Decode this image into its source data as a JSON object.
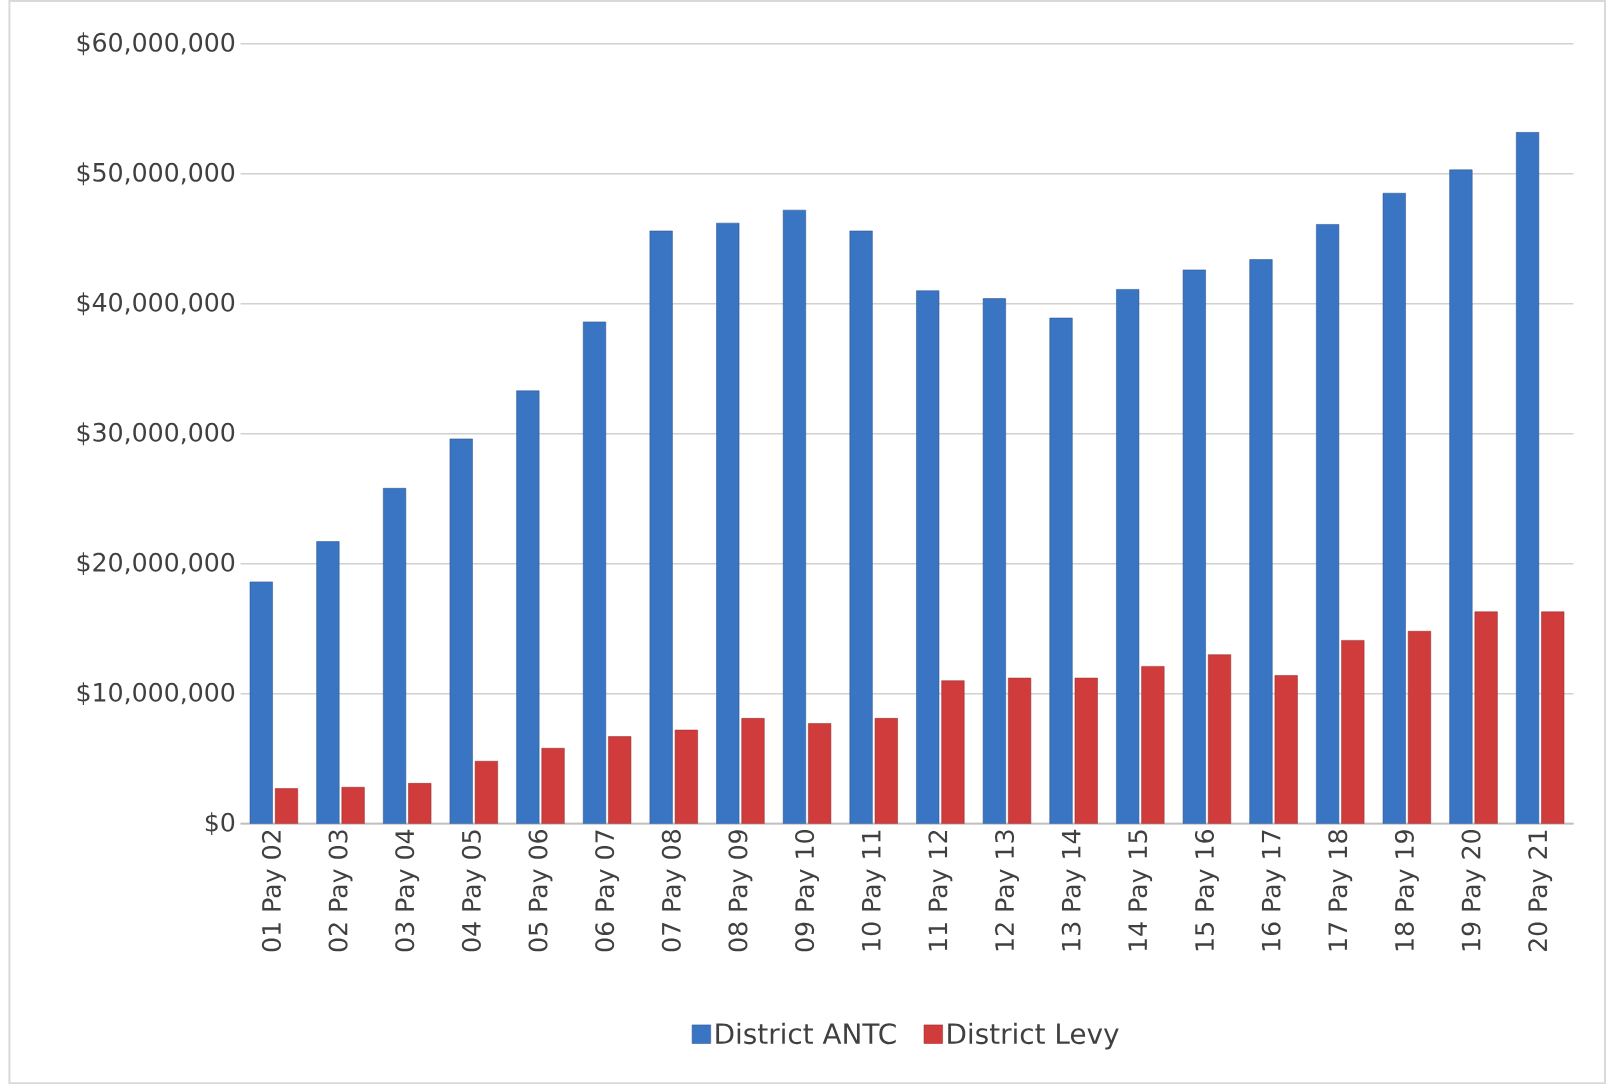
{
  "chart_data": {
    "type": "bar",
    "categories": [
      "01 Pay 02",
      "02 Pay 03",
      "03 Pay 04",
      "04 Pay 05",
      "05 Pay 06",
      "06 Pay 07",
      "07 Pay 08",
      "08 Pay 09",
      "09 Pay 10",
      "10 Pay 11",
      "11 Pay 12",
      "12 Pay 13",
      "13 Pay 14",
      "14 Pay 15",
      "15 Pay 16",
      "16 Pay 17",
      "17 Pay 18",
      "18 Pay 19",
      "19 Pay 20",
      "20 Pay 21"
    ],
    "series": [
      {
        "name": "District ANTC",
        "color": "#3a75c4",
        "values": [
          18600000,
          21700000,
          25800000,
          29600000,
          33300000,
          38600000,
          45600000,
          46200000,
          47200000,
          45600000,
          41000000,
          40400000,
          38900000,
          41100000,
          42600000,
          43400000,
          46100000,
          48500000,
          50300000,
          53200000
        ]
      },
      {
        "name": "District Levy",
        "color": "#d03c3c",
        "values": [
          2700000,
          2800000,
          3100000,
          4800000,
          5800000,
          6700000,
          7200000,
          8100000,
          7700000,
          8100000,
          11000000,
          11200000,
          11200000,
          12100000,
          13000000,
          11400000,
          14100000,
          14800000,
          16300000,
          16300000
        ]
      }
    ],
    "ylim": [
      0,
      60000000
    ],
    "yticks": [
      {
        "value": 0,
        "label": "$0"
      },
      {
        "value": 10000000,
        "label": "$10,000,000"
      },
      {
        "value": 20000000,
        "label": "$20,000,000"
      },
      {
        "value": 30000000,
        "label": "$30,000,000"
      },
      {
        "value": 40000000,
        "label": "$40,000,000"
      },
      {
        "value": 50000000,
        "label": "$50,000,000"
      },
      {
        "value": 60000000,
        "label": "$60,000,000"
      }
    ],
    "grid": "y",
    "legend": "bottom"
  }
}
